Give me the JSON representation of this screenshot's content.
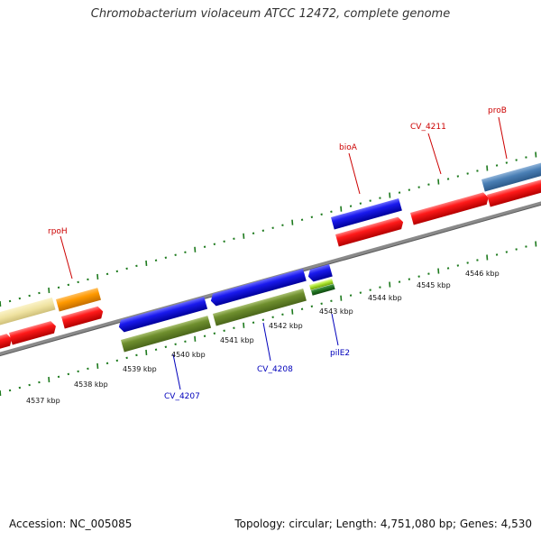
{
  "title": "Chromobacterium violaceum ATCC 12472, complete genome",
  "footer": {
    "accession": "Accession: NC_005085",
    "summary": "Topology: circular; Length: 4,751,080 bp; Genes: 4,530"
  },
  "colors": {
    "backbone": "#8a8a8a",
    "tick": "#1d7a1d",
    "label_red": "#cc0000",
    "label_blue": "#0000bb"
  },
  "kbp_labels": [
    "4537 kbp",
    "4538 kbp",
    "4539 kbp",
    "4540 kbp",
    "4541 kbp",
    "4542 kbp",
    "4543 kbp",
    "4544 kbp",
    "4545 kbp",
    "4546 kbp"
  ],
  "gene_labels": {
    "rpoH": "rpoH",
    "bioA": "bioA",
    "CV_4211": "CV_4211",
    "proB": "proB",
    "CV_4207": "CV_4207",
    "CV_4208": "CV_4208",
    "pilE2": "pilE2"
  }
}
